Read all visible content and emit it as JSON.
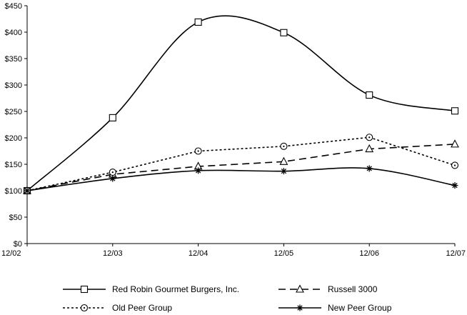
{
  "chart_data": {
    "type": "line",
    "categories": [
      "12/02",
      "12/03",
      "12/04",
      "12/05",
      "12/06",
      "12/07"
    ],
    "ylim": [
      0,
      450
    ],
    "yticks": [
      0,
      50,
      100,
      150,
      200,
      250,
      300,
      350,
      400,
      450
    ],
    "ytick_labels": [
      "$0",
      "$50",
      "$100",
      "$150",
      "$200",
      "$250",
      "$300",
      "$350",
      "$400",
      "$450"
    ],
    "series": [
      {
        "name": "Red Robin Gourmet Burgers, Inc.",
        "values": [
          100,
          238,
          419,
          399,
          281,
          251
        ],
        "marker": "square",
        "dash": "solid",
        "smooth": true
      },
      {
        "name": "Russell 3000",
        "values": [
          100,
          131,
          146,
          155,
          179,
          188
        ],
        "marker": "triangle",
        "dash": "dashed",
        "smooth": false
      },
      {
        "name": "Old Peer Group",
        "values": [
          100,
          135,
          175,
          184,
          201,
          148
        ],
        "marker": "circle",
        "dash": "dotted",
        "smooth": false
      },
      {
        "name": "New Peer Group",
        "values": [
          100,
          123,
          138,
          137,
          142,
          110
        ],
        "marker": "asterisk",
        "dash": "solid",
        "smooth": true
      }
    ],
    "legend_position": "bottom",
    "line_color": "#000000"
  }
}
